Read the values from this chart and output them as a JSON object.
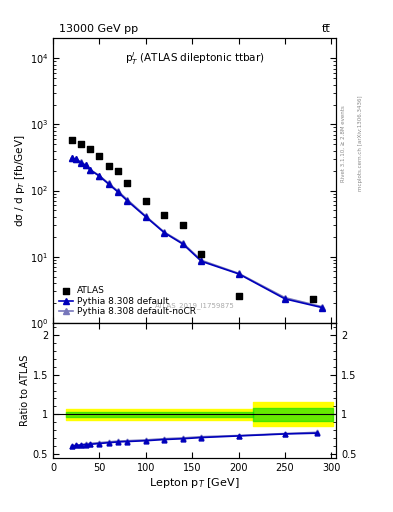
{
  "title_left": "13000 GeV pp",
  "title_right": "tt",
  "plot_label": "p$_{T}^{l}$ (ATLAS dileptonic ttbar)",
  "watermark": "ATLAS_2019_I1759875",
  "rivet_label": "Rivet 3.1.10, ≥ 2.8M events",
  "arxiv_label": "mcplots.cern.ch [arXiv:1306.3436]",
  "xlabel": "Lepton p$_{T}$ [GeV]",
  "ylabel_main": "dσ / d p$_{T}$ [fb/GeV]",
  "ylabel_ratio": "Ratio to ATLAS",
  "atlas_x": [
    20,
    30,
    40,
    50,
    60,
    70,
    80,
    100,
    120,
    140,
    160,
    200,
    280
  ],
  "atlas_y": [
    580,
    510,
    430,
    330,
    235,
    195,
    130,
    70,
    42,
    30,
    11,
    2.5,
    2.3
  ],
  "pythia_default_x": [
    20,
    25,
    30,
    35,
    40,
    50,
    60,
    70,
    80,
    100,
    120,
    140,
    160,
    200,
    250,
    290
  ],
  "pythia_default_y": [
    310,
    295,
    265,
    240,
    205,
    165,
    125,
    95,
    70,
    40,
    23,
    15.5,
    8.5,
    5.5,
    2.3,
    1.7
  ],
  "pythia_nocr_x": [
    20,
    25,
    30,
    35,
    40,
    50,
    60,
    70,
    80,
    100,
    120,
    140,
    160,
    200,
    250,
    290
  ],
  "pythia_nocr_y": [
    312,
    298,
    268,
    243,
    208,
    168,
    128,
    98,
    73,
    41,
    23.5,
    16,
    8.8,
    5.6,
    2.4,
    1.75
  ],
  "ratio_default_x": [
    20,
    25,
    30,
    35,
    40,
    50,
    60,
    70,
    80,
    100,
    120,
    140,
    160,
    200,
    250,
    285
  ],
  "ratio_default_y": [
    0.6,
    0.61,
    0.615,
    0.62,
    0.625,
    0.635,
    0.645,
    0.655,
    0.66,
    0.67,
    0.685,
    0.695,
    0.71,
    0.73,
    0.755,
    0.765
  ],
  "ratio_nocr_x": [
    20,
    25,
    30,
    35,
    40,
    50,
    60,
    70,
    80,
    100,
    120,
    140,
    160,
    200,
    250,
    285
  ],
  "ratio_nocr_y": [
    0.605,
    0.615,
    0.62,
    0.63,
    0.635,
    0.645,
    0.655,
    0.665,
    0.67,
    0.68,
    0.695,
    0.705,
    0.72,
    0.735,
    0.76,
    0.775
  ],
  "band_yellow_x1": 14,
  "band_yellow_x2_seg1": 215,
  "band_yellow_y_top_seg1": 1.07,
  "band_yellow_y_bot_seg1": 0.93,
  "band_yellow_x1_seg2": 215,
  "band_yellow_x2_seg2": 302,
  "band_yellow_y_top_seg2": 1.15,
  "band_yellow_y_bot_seg2": 0.85,
  "band_green_x1": 14,
  "band_green_x2_seg1": 215,
  "band_green_y_top_seg1": 1.035,
  "band_green_y_bot_seg1": 0.965,
  "band_green_x1_seg2": 215,
  "band_green_x2_seg2": 302,
  "band_green_y_top_seg2": 1.08,
  "band_green_y_bot_seg2": 0.92,
  "color_atlas": "#000000",
  "color_default": "#0000bb",
  "color_nocr": "#7777bb",
  "color_yellow": "#ffff00",
  "color_green": "#00dd00",
  "xlim": [
    0,
    305
  ],
  "ylim_main": [
    1.0,
    20000
  ],
  "ylim_ratio": [
    0.45,
    2.15
  ],
  "ratio_yticks": [
    0.5,
    1.0,
    1.5,
    2.0
  ]
}
